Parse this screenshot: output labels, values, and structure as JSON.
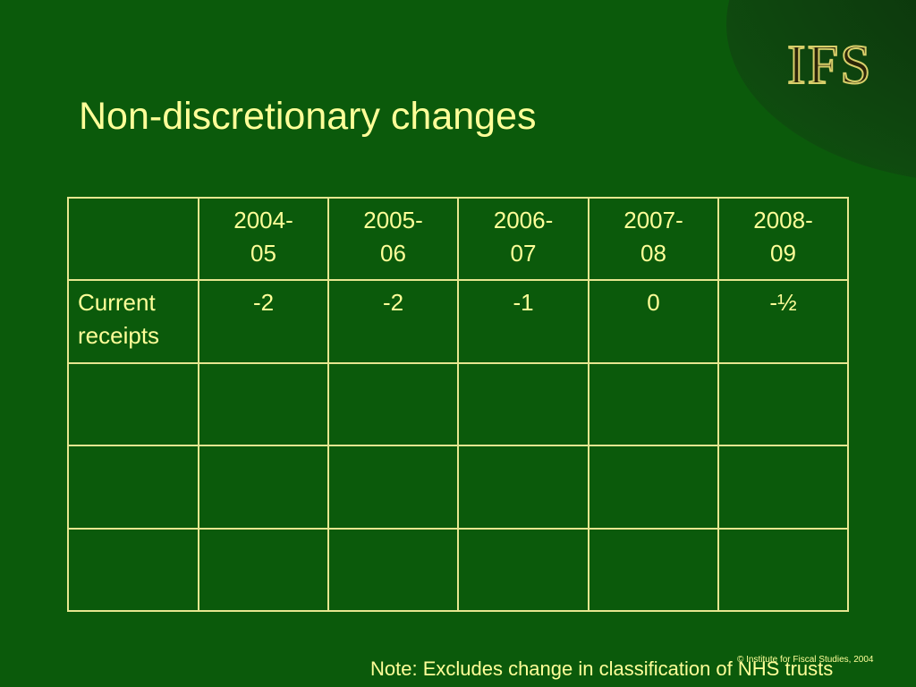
{
  "slide": {
    "title": "Non-discretionary changes",
    "logo": "IFS",
    "note": "Note: Excludes change in classification of NHS trusts",
    "copyright": "© Institute for Fiscal Studies, 2004"
  },
  "table": {
    "headers": [
      "",
      "2004-05",
      "2005-06",
      "2006-07",
      "2007-08",
      "2008-09"
    ],
    "header_display": [
      "",
      "2004-\n05",
      "2005-\n06",
      "2006-\n07",
      "2007-\n08",
      "2008-\n09"
    ],
    "rows": [
      {
        "label": "Current receipts",
        "values": [
          "-2",
          "-2",
          "-1",
          "0",
          "-½"
        ]
      },
      {
        "label": "",
        "values": [
          "",
          "",
          "",
          "",
          ""
        ]
      },
      {
        "label": "",
        "values": [
          "",
          "",
          "",
          "",
          ""
        ]
      },
      {
        "label": "",
        "values": [
          "",
          "",
          "",
          "",
          ""
        ]
      }
    ]
  },
  "colors": {
    "background": "#0b5a0b",
    "text": "#ffff99",
    "grid_lines": "#e6e690"
  }
}
